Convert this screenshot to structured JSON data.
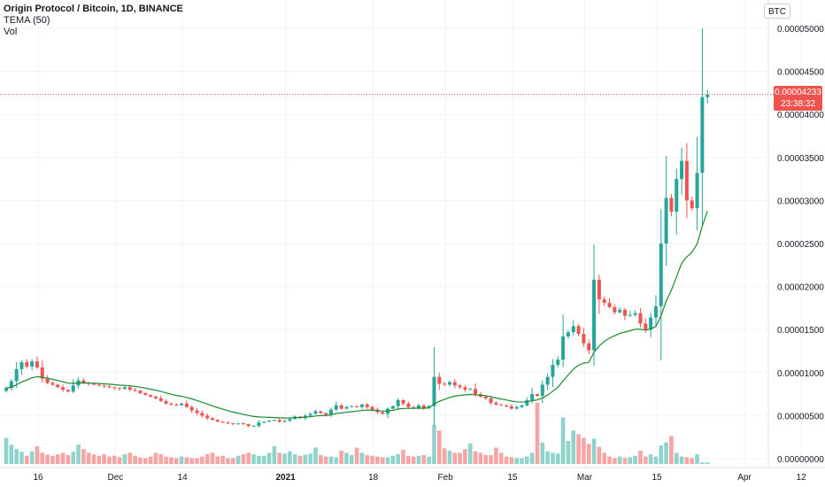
{
  "legend": {
    "symbol": "Origin Protocol / Bitcoin, 1D, BINANCE",
    "indicator": "TEMA (50)",
    "volume": "Vol"
  },
  "currency_button": "BTC",
  "last_price": "0.00004233",
  "countdown": "23:38:32",
  "colors": {
    "up": "#26a69a",
    "down": "#ef5350",
    "up_volume": "#8fd3cc",
    "down_volume": "#f5a5a3",
    "tema": "#1b8a2e",
    "grid": "#f0f3fa"
  },
  "chart_data": {
    "type": "candlestick",
    "interval": "1D",
    "exchange": "BINANCE",
    "y_axis_labels": [
      "0.00005000",
      "0.00004500",
      "0.00004000",
      "0.00003500",
      "0.00003000",
      "0.00002500",
      "0.00002000",
      "0.00001500",
      "0.00001000",
      "0.00000500",
      "0.00000000"
    ],
    "ylim": [
      0,
      5e-05
    ],
    "x_axis_labels": [
      "16",
      "Dec",
      "14",
      "2021",
      "18",
      "Feb",
      "15",
      "Mar",
      "15",
      "Apr",
      "12"
    ],
    "x_label_day_index": [
      0,
      15,
      28,
      48,
      65,
      79,
      92,
      106,
      120,
      137,
      148
    ],
    "x_label_bold": [
      false,
      false,
      false,
      true,
      false,
      false,
      false,
      false,
      false,
      false,
      false
    ],
    "first_day": "2020-11-16",
    "close": [
      8.2e-06,
      9e-06,
      1.04e-05,
      1.12e-05,
      1.07e-05,
      1.13e-05,
      1.06e-05,
      9.3e-06,
      8.8e-06,
      8.6e-06,
      8.3e-06,
      8e-06,
      7.8e-06,
      8.5e-06,
      9.1e-06,
      8.8e-06,
      8.7e-06,
      8.6e-06,
      8.5e-06,
      8.4e-06,
      8.3e-06,
      8.2e-06,
      8.1e-06,
      8.3e-06,
      8e-06,
      7.9e-06,
      7.6e-06,
      7.4e-06,
      7.2e-06,
      7e-06,
      6.7e-06,
      6.4e-06,
      6.3e-06,
      6.2e-06,
      6.4e-06,
      6e-06,
      5.6e-06,
      5.3e-06,
      5e-06,
      4.7e-06,
      4.5e-06,
      4.3e-06,
      4.2e-06,
      4.1e-06,
      4e-06,
      4.1e-06,
      4e-06,
      3.8e-06,
      3.8e-06,
      4.2e-06,
      4.3e-06,
      4.4e-06,
      4.5e-06,
      4.3e-06,
      4.4e-06,
      4.6e-06,
      4.9e-06,
      4.7e-06,
      5e-06,
      5.2e-06,
      5.5e-06,
      5.3e-06,
      5.1e-06,
      5.7e-06,
      6.2e-06,
      5.8e-06,
      6e-06,
      6.1e-06,
      6e-06,
      6.3e-06,
      6e-06,
      5.7e-06,
      5.4e-06,
      5.2e-06,
      5.8e-06,
      6.1e-06,
      6.8e-06,
      6.4e-06,
      6e-06,
      5.9e-06,
      6.2e-06,
      5.9e-06,
      6.1e-06,
      9.5e-06,
      8.7e-06,
      8.6e-06,
      8.9e-06,
      8.5e-06,
      8.3e-06,
      8e-06,
      8.1e-06,
      7.5e-06,
      7.2e-06,
      7e-06,
      6.5e-06,
      6.3e-06,
      6.2e-06,
      6.1e-06,
      5.8e-06,
      6e-06,
      6.2e-06,
      6.8e-06,
      7.5e-06,
      7.3e-06,
      8.6e-06,
      9.5e-06,
      1.09e-05,
      1.15e-05,
      1.42e-05,
      1.47e-05,
      1.54e-05,
      1.45e-05,
      1.34e-05,
      1.26e-05,
      2.08e-05,
      1.85e-05,
      1.81e-05,
      1.76e-05,
      1.7e-05,
      1.73e-05,
      1.66e-05,
      1.67e-05,
      1.69e-05,
      1.57e-05,
      1.5e-05,
      1.64e-05,
      1.77e-05,
      2.5e-05,
      3.03e-05,
      2.87e-05,
      3.25e-05,
      3.46e-05,
      3e-05,
      2.91e-05,
      3.32e-05,
      4.2e-05,
      4.23e-05
    ],
    "volume": [
      0.7,
      0.52,
      0.4,
      0.33,
      0.22,
      0.34,
      0.48,
      0.3,
      0.25,
      0.22,
      0.26,
      0.3,
      0.24,
      0.33,
      0.52,
      0.4,
      0.3,
      0.26,
      0.22,
      0.26,
      0.2,
      0.22,
      0.18,
      0.26,
      0.3,
      0.22,
      0.18,
      0.16,
      0.2,
      0.3,
      0.26,
      0.2,
      0.18,
      0.16,
      0.2,
      0.18,
      0.16,
      0.16,
      0.2,
      0.26,
      0.3,
      0.2,
      0.22,
      0.16,
      0.16,
      0.22,
      0.26,
      0.3,
      0.26,
      0.22,
      0.22,
      0.3,
      0.48,
      0.3,
      0.28,
      0.34,
      0.26,
      0.22,
      0.25,
      0.28,
      0.44,
      0.24,
      0.2,
      0.2,
      0.18,
      0.36,
      0.3,
      0.24,
      0.44,
      0.3,
      0.24,
      0.22,
      0.2,
      0.18,
      0.18,
      0.22,
      0.26,
      0.38,
      0.22,
      0.2,
      0.22,
      0.24,
      0.2,
      1.05,
      0.9,
      0.42,
      0.36,
      0.3,
      0.3,
      0.4,
      0.55,
      0.34,
      0.3,
      0.24,
      0.24,
      0.44,
      0.3,
      0.2,
      0.18,
      0.16,
      0.16,
      0.2,
      0.3,
      1.65,
      0.58,
      0.34,
      0.3,
      0.28,
      1.25,
      0.62,
      0.9,
      0.8,
      0.7,
      0.54,
      0.68,
      0.46,
      0.3,
      0.2,
      0.16,
      0.2,
      0.16,
      0.18,
      0.22,
      0.36,
      0.2,
      0.26,
      0.2,
      0.5,
      0.58,
      0.75,
      0.3,
      0.2,
      0.18,
      0.16,
      0.26,
      0.04,
      0.04
    ]
  }
}
